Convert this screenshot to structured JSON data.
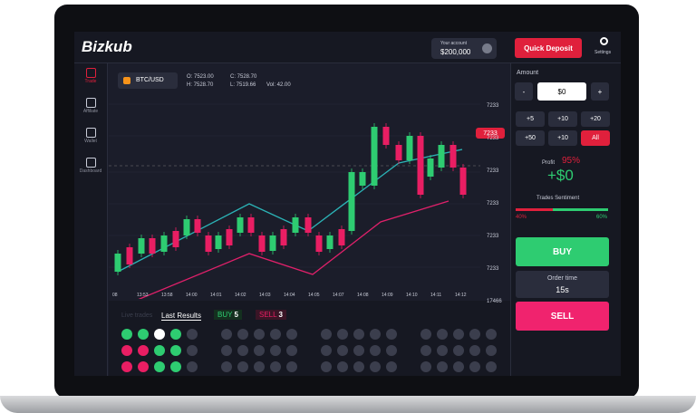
{
  "header": {
    "logo": "Bizkub",
    "account_label": "Your account",
    "balance": "$200,000",
    "deposit": "Quick Deposit",
    "settings": "Settings"
  },
  "sidebar": [
    "Trade",
    "Affiliate",
    "Wallet",
    "Dashboard"
  ],
  "ticker": {
    "pair": "BTC/USD",
    "open": "O: 7523.00",
    "close": "C: 7528.70",
    "high": "H: 7528.70",
    "low": "L: 7519.66",
    "volume": "Vol: 42.00"
  },
  "chart": {
    "price_tag": "7233",
    "y_labels": [
      "7233",
      "7233",
      "7233",
      "7233",
      "7233",
      "7233",
      "17466"
    ],
    "x_labels": [
      "08",
      "13:53",
      "13:58",
      "14:00",
      "14:01",
      "14:02",
      "14:03",
      "14:04",
      "14:05",
      "14:07",
      "14:08",
      "14:09",
      "14:10",
      "14:11",
      "14:12"
    ]
  },
  "results": {
    "tab_live": "Live trades",
    "tab_last": "Last Results",
    "buy": "BUY",
    "buy_count": "5",
    "sell": "SELL",
    "sell_count": "3"
  },
  "panel": {
    "amount_label": "Amount",
    "minus": "-",
    "amount": "$0",
    "plus": "+",
    "quick": [
      "+5",
      "+10",
      "+20",
      "+50",
      "+10",
      "All"
    ],
    "profit_label": "Profit",
    "profit_pct": "95%",
    "profit_value": "+$0",
    "sentiment_label": "Trades Sentiment",
    "sentiment_low": "40%",
    "sentiment_high": "60%",
    "buy": "BUY",
    "order_time_label": "Order time",
    "order_time": "15s",
    "sell": "SELL"
  }
}
